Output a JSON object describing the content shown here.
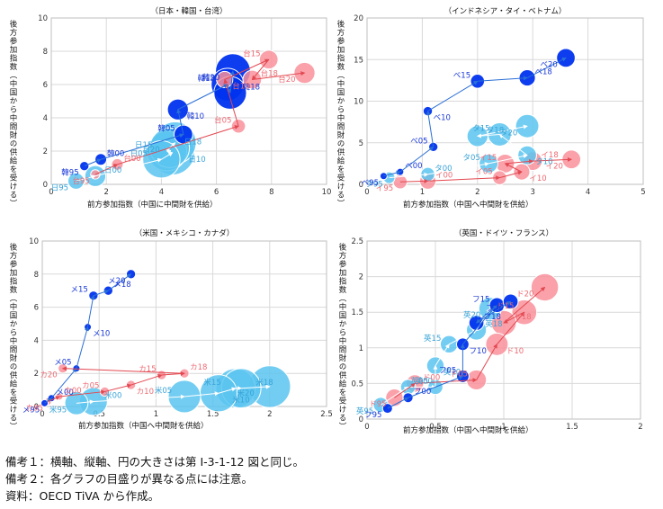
{
  "colors": {
    "dark_blue": "#0033ee",
    "light_blue": "#5bc4f0",
    "pink": "#f9919b",
    "red_label": "#ee6b73",
    "blue_label": "#1a3ad8",
    "sky_label": "#3aa4d8",
    "arrow_blue": "#2a6fd6",
    "arrow_sky": "#ffffff",
    "arrow_pink": "#e34850",
    "link_yellow": "#e8e45a",
    "grid": "#d9d9d9",
    "axis_text": "#333333"
  },
  "notes": [
    "備考１：横軸、縦軸、円の大きさは第 I-3-1-12 図と同じ。",
    "備考２：各グラフの目盛りが異なる点には注意。",
    "資料：OECD TiVA から作成。"
  ],
  "chart_data": [
    {
      "type": "scatter",
      "title": "（日本・韓国・台湾）",
      "xlabel": "前方参加指数（中国に中間財を供給）",
      "ylabel": "後方参加指数（中国から中間財の供給を受ける）",
      "xlim": [
        0,
        10
      ],
      "xticks": [
        0,
        2,
        4,
        6,
        8,
        10
      ],
      "ylim": [
        0,
        10
      ],
      "yticks": [
        0,
        2,
        4,
        6,
        8,
        10
      ],
      "series": [
        {
          "name": "日本",
          "kind": "light_blue",
          "points": [
            {
              "label": "日95",
              "x": 0.9,
              "y": 0.2,
              "size": 0.35
            },
            {
              "label": "日00",
              "x": 1.6,
              "y": 0.5,
              "size": 0.45
            },
            {
              "label": "日05",
              "x": 4.0,
              "y": 1.5,
              "size": 0.8
            },
            {
              "label": "日10",
              "x": 4.4,
              "y": 1.9,
              "size": 0.95
            },
            {
              "label": "日15",
              "x": 4.2,
              "y": 2.0,
              "size": 0.85
            },
            {
              "label": "日18",
              "x": 4.3,
              "y": 2.2,
              "size": 0.85
            },
            {
              "label": "日20",
              "x": 4.5,
              "y": 2.5,
              "size": 0.9
            }
          ]
        },
        {
          "name": "韓国",
          "kind": "dark_blue",
          "points": [
            {
              "label": "韓95",
              "x": 1.2,
              "y": 1.1,
              "size": 0.2
            },
            {
              "label": "韓00",
              "x": 1.8,
              "y": 1.5,
              "size": 0.25
            },
            {
              "label": "韓05",
              "x": 4.8,
              "y": 3.0,
              "size": 0.4
            },
            {
              "label": "韓10",
              "x": 4.6,
              "y": 4.5,
              "size": 0.45
            },
            {
              "label": "韓15",
              "x": 6.4,
              "y": 6.0,
              "size": 0.7
            },
            {
              "label": "韓18",
              "x": 6.5,
              "y": 5.5,
              "size": 0.7
            },
            {
              "label": "韓20",
              "x": 6.6,
              "y": 6.8,
              "size": 0.75
            }
          ]
        },
        {
          "name": "台湾",
          "kind": "pink",
          "points": [
            {
              "label": "台95",
              "x": 1.6,
              "y": 0.6,
              "size": 0.2
            },
            {
              "label": "台00",
              "x": 2.4,
              "y": 1.2,
              "size": 0.25
            },
            {
              "label": "台05",
              "x": 6.8,
              "y": 3.5,
              "size": 0.3
            },
            {
              "label": "台10",
              "x": 6.3,
              "y": 6.3,
              "size": 0.35
            },
            {
              "label": "台15",
              "x": 7.9,
              "y": 7.5,
              "size": 0.4
            },
            {
              "label": "台18",
              "x": 7.3,
              "y": 6.3,
              "size": 0.4
            },
            {
              "label": "台20",
              "x": 9.2,
              "y": 6.7,
              "size": 0.45
            }
          ]
        }
      ]
    },
    {
      "type": "scatter",
      "title": "（インドネシア・タイ・ベトナム）",
      "xlabel": "前方参加指数（中国へ中間財を供給）",
      "ylabel": "後方参加指数（中国から中間財の供給を受ける）",
      "xlim": [
        0,
        5
      ],
      "xticks": [
        0,
        1,
        2,
        3,
        4,
        5
      ],
      "ylim": [
        0,
        20
      ],
      "yticks": [
        0,
        5,
        10,
        15,
        20
      ],
      "series": [
        {
          "name": "インドネシア",
          "kind": "pink",
          "points": [
            {
              "label": "イ95",
              "x": 0.6,
              "y": 0.3,
              "size": 0.3
            },
            {
              "label": "イ00",
              "x": 1.1,
              "y": 0.4,
              "size": 0.35
            },
            {
              "label": "イ05",
              "x": 2.4,
              "y": 0.8,
              "size": 0.3
            },
            {
              "label": "イ10",
              "x": 2.8,
              "y": 1.5,
              "size": 0.35
            },
            {
              "label": "イ15",
              "x": 2.5,
              "y": 2.5,
              "size": 0.4
            },
            {
              "label": "イ18",
              "x": 3.0,
              "y": 2.8,
              "size": 0.4
            },
            {
              "label": "イ20",
              "x": 3.7,
              "y": 3.0,
              "size": 0.4
            }
          ]
        },
        {
          "name": "タイ",
          "kind": "light_blue",
          "points": [
            {
              "label": "タ95",
              "x": 0.4,
              "y": 0.8,
              "size": 0.25
            },
            {
              "label": "タ00",
              "x": 1.1,
              "y": 1.2,
              "size": 0.3
            },
            {
              "label": "タ05",
              "x": 2.2,
              "y": 2.5,
              "size": 0.4
            },
            {
              "label": "タ10",
              "x": 2.9,
              "y": 3.5,
              "size": 0.4
            },
            {
              "label": "タ15",
              "x": 2.4,
              "y": 6.0,
              "size": 0.5
            },
            {
              "label": "タ18",
              "x": 2.0,
              "y": 5.8,
              "size": 0.45
            },
            {
              "label": "タ20",
              "x": 2.9,
              "y": 7.0,
              "size": 0.5
            }
          ]
        },
        {
          "name": "ベトナム",
          "kind": "dark_blue",
          "points": [
            {
              "label": "ベ95",
              "x": 0.3,
              "y": 1.0,
              "size": 0.1
            },
            {
              "label": "ベ00",
              "x": 0.6,
              "y": 1.5,
              "size": 0.12
            },
            {
              "label": "ベ05",
              "x": 1.2,
              "y": 4.5,
              "size": 0.2
            },
            {
              "label": "ベ10",
              "x": 1.1,
              "y": 8.8,
              "size": 0.2
            },
            {
              "label": "ベ15",
              "x": 2.0,
              "y": 12.4,
              "size": 0.3
            },
            {
              "label": "ベ18",
              "x": 2.9,
              "y": 12.8,
              "size": 0.35
            },
            {
              "label": "ベ20",
              "x": 3.6,
              "y": 15.2,
              "size": 0.4
            }
          ]
        }
      ]
    },
    {
      "type": "scatter",
      "title": "（米国・メキシコ・カナダ）",
      "xlabel": "前方参加指数（中国へ中間財を供給）",
      "ylabel": "後方参加指数（中国から中間財の供給を受ける）",
      "xlim": [
        0,
        2.5
      ],
      "xticks": [
        0,
        0.5,
        1,
        1.5,
        2,
        2.5
      ],
      "ylim": [
        0,
        10
      ],
      "yticks": [
        0,
        2,
        4,
        6,
        8,
        10
      ],
      "series": [
        {
          "name": "米国",
          "kind": "light_blue",
          "points": [
            {
              "label": "米95",
              "x": 0.3,
              "y": 0.2,
              "size": 0.5
            },
            {
              "label": "米00",
              "x": 0.45,
              "y": 0.3,
              "size": 0.6
            },
            {
              "label": "米05",
              "x": 1.25,
              "y": 0.6,
              "size": 0.7
            },
            {
              "label": "米10",
              "x": 1.55,
              "y": 0.8,
              "size": 0.8
            },
            {
              "label": "米15",
              "x": 1.7,
              "y": 1.1,
              "size": 0.85
            },
            {
              "label": "米18",
              "x": 1.75,
              "y": 1.1,
              "size": 0.85
            },
            {
              "label": "米20",
              "x": 2.0,
              "y": 1.2,
              "size": 0.9
            }
          ]
        },
        {
          "name": "メキシコ",
          "kind": "dark_blue",
          "points": [
            {
              "label": "メ95",
              "x": 0.02,
              "y": 0.2,
              "size": 0.1
            },
            {
              "label": "メ00",
              "x": 0.08,
              "y": 0.5,
              "size": 0.1
            },
            {
              "label": "メ05",
              "x": 0.3,
              "y": 2.3,
              "size": 0.1
            },
            {
              "label": "メ10",
              "x": 0.4,
              "y": 4.8,
              "size": 0.15
            },
            {
              "label": "メ15",
              "x": 0.45,
              "y": 6.7,
              "size": 0.2
            },
            {
              "label": "メ18",
              "x": 0.58,
              "y": 7.0,
              "size": 0.2
            },
            {
              "label": "メ20",
              "x": 0.78,
              "y": 8.0,
              "size": 0.2
            }
          ]
        },
        {
          "name": "カナダ",
          "kind": "pink",
          "points": [
            {
              "label": "カ95",
              "x": 0.05,
              "y": 0.3,
              "size": 0.15
            },
            {
              "label": "カ00",
              "x": 0.15,
              "y": 0.6,
              "size": 0.15
            },
            {
              "label": "カ05",
              "x": 0.55,
              "y": 0.9,
              "size": 0.2
            },
            {
              "label": "カ10",
              "x": 0.78,
              "y": 1.3,
              "size": 0.2
            },
            {
              "label": "カ15",
              "x": 1.05,
              "y": 1.9,
              "size": 0.2
            },
            {
              "label": "カ18",
              "x": 1.25,
              "y": 2.0,
              "size": 0.2
            },
            {
              "label": "カ20",
              "x": 0.18,
              "y": 2.3,
              "size": 0.2
            }
          ]
        }
      ]
    },
    {
      "type": "scatter",
      "title": "（英国・ドイツ・フランス）",
      "xlabel": "前方参加指数（中国へ中間財を供給）",
      "ylabel": "後方参加指数（中国から中間財の供給を受ける）",
      "xlim": [
        0,
        2.0
      ],
      "xticks": [
        0.0,
        0.5,
        1.0,
        1.5,
        2.0
      ],
      "ylim": [
        0,
        2.5
      ],
      "yticks": [
        0.0,
        0.5,
        1.0,
        1.5,
        2.0,
        2.5
      ],
      "series": [
        {
          "name": "英国",
          "kind": "light_blue",
          "points": [
            {
              "label": "英95",
              "x": 0.1,
              "y": 0.2,
              "size": 0.3
            },
            {
              "label": "英00",
              "x": 0.3,
              "y": 0.45,
              "size": 0.3
            },
            {
              "label": "英05",
              "x": 0.5,
              "y": 0.45,
              "size": 0.3
            },
            {
              "label": "英10",
              "x": 0.5,
              "y": 0.75,
              "size": 0.35
            },
            {
              "label": "英15",
              "x": 0.6,
              "y": 1.05,
              "size": 0.35
            },
            {
              "label": "英18",
              "x": 0.8,
              "y": 1.25,
              "size": 0.4
            },
            {
              "label": "英20",
              "x": 0.9,
              "y": 1.55,
              "size": 0.45
            }
          ]
        },
        {
          "name": "ドイツ",
          "kind": "pink",
          "points": [
            {
              "label": "ド95",
              "x": 0.2,
              "y": 0.3,
              "size": 0.35
            },
            {
              "label": "ド00",
              "x": 0.35,
              "y": 0.5,
              "size": 0.35
            },
            {
              "label": "ド05",
              "x": 0.8,
              "y": 0.55,
              "size": 0.4
            },
            {
              "label": "ド10",
              "x": 0.95,
              "y": 1.05,
              "size": 0.45
            },
            {
              "label": "ド15",
              "x": 1.15,
              "y": 1.5,
              "size": 0.5
            },
            {
              "label": "ド18",
              "x": 1.0,
              "y": 1.35,
              "size": 0.5
            },
            {
              "label": "ド20",
              "x": 1.3,
              "y": 1.85,
              "size": 0.55
            }
          ]
        },
        {
          "name": "フランス",
          "kind": "dark_blue",
          "points": [
            {
              "label": "フ95",
              "x": 0.15,
              "y": 0.15,
              "size": 0.2
            },
            {
              "label": "フ00",
              "x": 0.3,
              "y": 0.3,
              "size": 0.2
            },
            {
              "label": "フ05",
              "x": 0.7,
              "y": 0.6,
              "size": 0.25
            },
            {
              "label": "フ10",
              "x": 0.7,
              "y": 1.05,
              "size": 0.25
            },
            {
              "label": "フ15",
              "x": 0.95,
              "y": 1.6,
              "size": 0.3
            },
            {
              "label": "フ18",
              "x": 0.8,
              "y": 1.35,
              "size": 0.3
            },
            {
              "label": "フ20",
              "x": 1.05,
              "y": 1.65,
              "size": 0.3
            }
          ]
        }
      ]
    }
  ]
}
